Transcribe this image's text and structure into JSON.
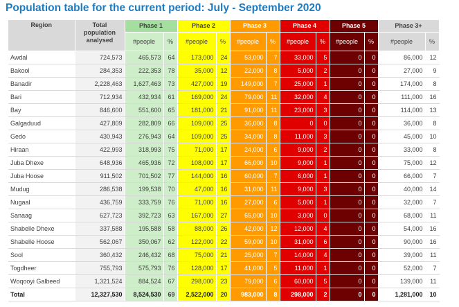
{
  "title": "Population table for the current period: July - September 2020",
  "headers": {
    "region": "Region",
    "total": [
      "Total",
      "population",
      "analysed"
    ],
    "phase1": "Phase 1",
    "phase2": "Phase 2",
    "phase3": "Phase 3",
    "phase4": "Phase 4",
    "phase5": "Phase 5",
    "phase3plus": "Phase 3+",
    "people": "#people",
    "pct": "%"
  },
  "colors": {
    "phase1": "#a5dfa0",
    "phase2": "#ffff00",
    "phase3": "#ff9a00",
    "phase4": "#e00000",
    "phase5": "#6d0000",
    "title": "#1f7bbf"
  },
  "rows": [
    {
      "region": "Awdal",
      "total": "724,573",
      "p1": "465,573",
      "p1pct": "64",
      "p2": "173,000",
      "p2pct": "24",
      "p3": "53,000",
      "p3pct": "7",
      "p4": "33,000",
      "p4pct": "5",
      "p5": "0",
      "p5pct": "0",
      "p3p": "86,000",
      "p3ppct": "12"
    },
    {
      "region": "Bakool",
      "total": "284,353",
      "p1": "222,353",
      "p1pct": "78",
      "p2": "35,000",
      "p2pct": "12",
      "p3": "22,000",
      "p3pct": "8",
      "p4": "5,000",
      "p4pct": "2",
      "p5": "0",
      "p5pct": "0",
      "p3p": "27,000",
      "p3ppct": "9"
    },
    {
      "region": "Banadir",
      "total": "2,228,463",
      "p1": "1,627,463",
      "p1pct": "73",
      "p2": "427,000",
      "p2pct": "19",
      "p3": "149,000",
      "p3pct": "7",
      "p4": "25,000",
      "p4pct": "1",
      "p5": "0",
      "p5pct": "0",
      "p3p": "174,000",
      "p3ppct": "8"
    },
    {
      "region": "Bari",
      "total": "712,934",
      "p1": "432,934",
      "p1pct": "61",
      "p2": "169,000",
      "p2pct": "24",
      "p3": "79,000",
      "p3pct": "11",
      "p4": "32,000",
      "p4pct": "4",
      "p5": "0",
      "p5pct": "0",
      "p3p": "111,000",
      "p3ppct": "16"
    },
    {
      "region": "Bay",
      "total": "846,600",
      "p1": "551,600",
      "p1pct": "65",
      "p2": "181,000",
      "p2pct": "21",
      "p3": "91,000",
      "p3pct": "11",
      "p4": "23,000",
      "p4pct": "3",
      "p5": "0",
      "p5pct": "0",
      "p3p": "114,000",
      "p3ppct": "13"
    },
    {
      "region": "Galgaduud",
      "total": "427,809",
      "p1": "282,809",
      "p1pct": "66",
      "p2": "109,000",
      "p2pct": "25",
      "p3": "36,000",
      "p3pct": "8",
      "p4": "0",
      "p4pct": "0",
      "p5": "0",
      "p5pct": "0",
      "p3p": "36,000",
      "p3ppct": "8"
    },
    {
      "region": "Gedo",
      "total": "430,943",
      "p1": "276,943",
      "p1pct": "64",
      "p2": "109,000",
      "p2pct": "25",
      "p3": "34,000",
      "p3pct": "8",
      "p4": "11,000",
      "p4pct": "3",
      "p5": "0",
      "p5pct": "0",
      "p3p": "45,000",
      "p3ppct": "10"
    },
    {
      "region": "Hiraan",
      "total": "422,993",
      "p1": "318,993",
      "p1pct": "75",
      "p2": "71,000",
      "p2pct": "17",
      "p3": "24,000",
      "p3pct": "6",
      "p4": "9,000",
      "p4pct": "2",
      "p5": "0",
      "p5pct": "0",
      "p3p": "33,000",
      "p3ppct": "8"
    },
    {
      "region": "Juba Dhexe",
      "total": "648,936",
      "p1": "465,936",
      "p1pct": "72",
      "p2": "108,000",
      "p2pct": "17",
      "p3": "66,000",
      "p3pct": "10",
      "p4": "9,000",
      "p4pct": "1",
      "p5": "0",
      "p5pct": "0",
      "p3p": "75,000",
      "p3ppct": "12"
    },
    {
      "region": "Juba Hoose",
      "total": "911,502",
      "p1": "701,502",
      "p1pct": "77",
      "p2": "144,000",
      "p2pct": "16",
      "p3": "60,000",
      "p3pct": "7",
      "p4": "6,000",
      "p4pct": "1",
      "p5": "0",
      "p5pct": "0",
      "p3p": "66,000",
      "p3ppct": "7"
    },
    {
      "region": "Mudug",
      "total": "286,538",
      "p1": "199,538",
      "p1pct": "70",
      "p2": "47,000",
      "p2pct": "16",
      "p3": "31,000",
      "p3pct": "11",
      "p4": "9,000",
      "p4pct": "3",
      "p5": "0",
      "p5pct": "0",
      "p3p": "40,000",
      "p3ppct": "14"
    },
    {
      "region": "Nugaal",
      "total": "436,759",
      "p1": "333,759",
      "p1pct": "76",
      "p2": "71,000",
      "p2pct": "16",
      "p3": "27,000",
      "p3pct": "6",
      "p4": "5,000",
      "p4pct": "1",
      "p5": "0",
      "p5pct": "0",
      "p3p": "32,000",
      "p3ppct": "7"
    },
    {
      "region": "Sanaag",
      "total": "627,723",
      "p1": "392,723",
      "p1pct": "63",
      "p2": "167,000",
      "p2pct": "27",
      "p3": "65,000",
      "p3pct": "10",
      "p4": "3,000",
      "p4pct": "0",
      "p5": "0",
      "p5pct": "0",
      "p3p": "68,000",
      "p3ppct": "11"
    },
    {
      "region": "Shabelle Dhexe",
      "total": "337,588",
      "p1": "195,588",
      "p1pct": "58",
      "p2": "88,000",
      "p2pct": "26",
      "p3": "42,000",
      "p3pct": "12",
      "p4": "12,000",
      "p4pct": "4",
      "p5": "0",
      "p5pct": "0",
      "p3p": "54,000",
      "p3ppct": "16"
    },
    {
      "region": "Shabelle Hoose",
      "total": "562,067",
      "p1": "350,067",
      "p1pct": "62",
      "p2": "122,000",
      "p2pct": "22",
      "p3": "59,000",
      "p3pct": "10",
      "p4": "31,000",
      "p4pct": "6",
      "p5": "0",
      "p5pct": "0",
      "p3p": "90,000",
      "p3ppct": "16"
    },
    {
      "region": "Sool",
      "total": "360,432",
      "p1": "246,432",
      "p1pct": "68",
      "p2": "75,000",
      "p2pct": "21",
      "p3": "25,000",
      "p3pct": "7",
      "p4": "14,000",
      "p4pct": "4",
      "p5": "0",
      "p5pct": "0",
      "p3p": "39,000",
      "p3ppct": "11"
    },
    {
      "region": "Togdheer",
      "total": "755,793",
      "p1": "575,793",
      "p1pct": "76",
      "p2": "128,000",
      "p2pct": "17",
      "p3": "41,000",
      "p3pct": "5",
      "p4": "11,000",
      "p4pct": "1",
      "p5": "0",
      "p5pct": "0",
      "p3p": "52,000",
      "p3ppct": "7"
    },
    {
      "region": "Woqooyi Galbeed",
      "total": "1,321,524",
      "p1": "884,524",
      "p1pct": "67",
      "p2": "298,000",
      "p2pct": "23",
      "p3": "79,000",
      "p3pct": "6",
      "p4": "60,000",
      "p4pct": "5",
      "p5": "0",
      "p5pct": "0",
      "p3p": "139,000",
      "p3ppct": "11"
    }
  ],
  "total_row": {
    "region": "Total",
    "total": "12,327,530",
    "p1": "8,524,530",
    "p1pct": "69",
    "p2": "2,522,000",
    "p2pct": "20",
    "p3": "983,000",
    "p3pct": "8",
    "p4": "298,000",
    "p4pct": "2",
    "p5": "0",
    "p5pct": "0",
    "p3p": "1,281,000",
    "p3ppct": "10"
  }
}
